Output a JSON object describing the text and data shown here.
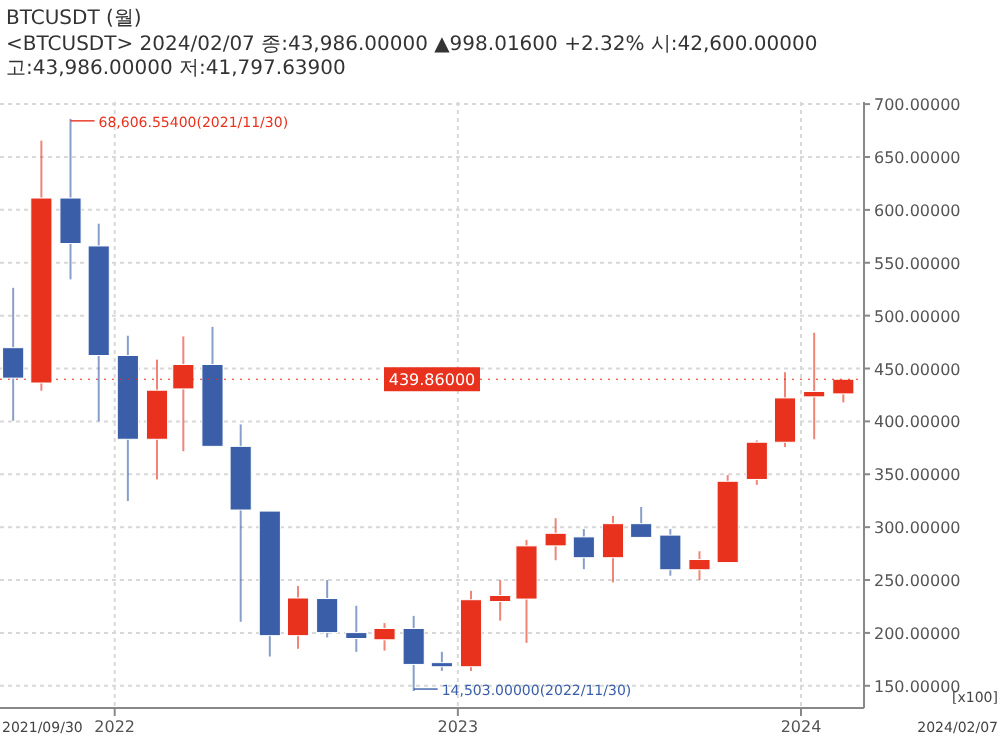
{
  "chart_data": {
    "type": "candlestick",
    "title": "BTCUSDT (월)",
    "subtitle": "<BTCUSDT> 2024/02/07 종:43,986.00000 ▲998.01600 +2.32% 시:42,600.00000 고:43,986.00000 저:41,797.63900",
    "x": [
      "2021-09-15",
      "2021-10-15",
      "2021-11-15",
      "2021-12-15",
      "2022-01-15",
      "2022-02-15",
      "2022-03-15",
      "2022-04-15",
      "2022-05-15",
      "2022-06-15",
      "2022-07-15",
      "2022-08-15",
      "2022-09-15",
      "2022-10-15",
      "2022-11-15",
      "2022-12-15",
      "2023-01-15",
      "2023-02-15",
      "2023-03-15",
      "2023-04-15",
      "2023-05-15",
      "2023-06-15",
      "2023-07-15",
      "2023-08-15",
      "2023-09-15",
      "2023-10-15",
      "2023-11-15",
      "2023-12-15",
      "2024-01-15",
      "2024-02-15"
    ],
    "ohlc": [
      [
        469.7,
        526.3,
        400.6,
        440.9
      ],
      [
        436.3,
        665.5,
        429.0,
        611.2
      ],
      [
        611.2,
        686.0655,
        534.3,
        568.2
      ],
      [
        565.9,
        586.9,
        400.1,
        462.3
      ],
      [
        462.3,
        481.0,
        324.7,
        383.1
      ],
      [
        383.1,
        458.4,
        345.1,
        429.5
      ],
      [
        430.7,
        480.4,
        371.8,
        453.8
      ],
      [
        453.8,
        489.4,
        376.4,
        376.4
      ],
      [
        376.4,
        397.2,
        210.5,
        316.2
      ],
      [
        315.2,
        315.2,
        177.7,
        197.4
      ],
      [
        197.4,
        244.4,
        185.0,
        233.0
      ],
      [
        232.5,
        250.0,
        195.7,
        200.3
      ],
      [
        200.3,
        225.7,
        182.1,
        194.7
      ],
      [
        193.5,
        209.3,
        183.3,
        204.2
      ],
      [
        204.2,
        216.1,
        145.03,
        170.2
      ],
      [
        171.9,
        182.1,
        164.1,
        168.0
      ],
      [
        168.0,
        239.8,
        164.1,
        231.4
      ],
      [
        229.7,
        250.0,
        211.6,
        235.4
      ],
      [
        232.0,
        288.0,
        190.6,
        282.3
      ],
      [
        282.3,
        308.5,
        268.7,
        294.2
      ],
      [
        290.8,
        298.2,
        260.2,
        271.1
      ],
      [
        271.1,
        310.6,
        247.8,
        303.3
      ],
      [
        303.3,
        319.1,
        290.3,
        290.3
      ],
      [
        292.5,
        298.2,
        254.1,
        259.7
      ],
      [
        259.7,
        277.2,
        250.0,
        269.4
      ],
      [
        266.5,
        349.2,
        266.5,
        343.4
      ],
      [
        345.1,
        382.0,
        340.0,
        380.3
      ],
      [
        380.3,
        446.5,
        375.7,
        422.2
      ],
      [
        423.2,
        483.8,
        383.1,
        428.3
      ],
      [
        426.0,
        439.86,
        417.97639,
        439.86
      ]
    ],
    "colors": [
      "#3a5fa8",
      "#e8321e",
      "#3a5fa8",
      "#3a5fa8",
      "#3a5fa8",
      "#e8321e",
      "#e8321e",
      "#3a5fa8",
      "#3a5fa8",
      "#3a5fa8",
      "#e8321e",
      "#3a5fa8",
      "#3a5fa8",
      "#e8321e",
      "#3a5fa8",
      "#3a5fa8",
      "#e8321e",
      "#e8321e",
      "#e8321e",
      "#e8321e",
      "#3a5fa8",
      "#e8321e",
      "#3a5fa8",
      "#3a5fa8",
      "#e8321e",
      "#e8321e",
      "#e8321e",
      "#e8321e",
      "#e8321e",
      "#e8321e"
    ],
    "xlim": [
      "2021-09-01",
      "2024-03-08"
    ],
    "xticks": [
      {
        "value": "2022-01-01",
        "label": "2022"
      },
      {
        "value": "2023-01-01",
        "label": "2023"
      },
      {
        "value": "2024-01-01",
        "label": "2024"
      }
    ],
    "ylim": [
      129,
      702
    ],
    "yticks": [
      {
        "value": 150,
        "label": "150.00000"
      },
      {
        "value": 200,
        "label": "200.00000"
      },
      {
        "value": 250,
        "label": "250.00000"
      },
      {
        "value": 300,
        "label": "300.00000"
      },
      {
        "value": 350,
        "label": "350.00000"
      },
      {
        "value": 400,
        "label": "400.00000"
      },
      {
        "value": 450,
        "label": "450.00000"
      },
      {
        "value": 500,
        "label": "500.00000"
      },
      {
        "value": 550,
        "label": "550.00000"
      },
      {
        "value": 600,
        "label": "600.00000"
      },
      {
        "value": 650,
        "label": "650.00000"
      },
      {
        "value": 700,
        "label": "700.00000"
      }
    ],
    "grid": true,
    "ref_lines": [
      {
        "axis": "y",
        "value": 439.86,
        "label": "439.86000",
        "color": "#e8321e"
      }
    ],
    "annotations": [
      "68,606.55400(2021/11/30)",
      "14,503.00000(2022/11/30)",
      "2021/09/30",
      "2024/02/07",
      "[x100]"
    ]
  }
}
